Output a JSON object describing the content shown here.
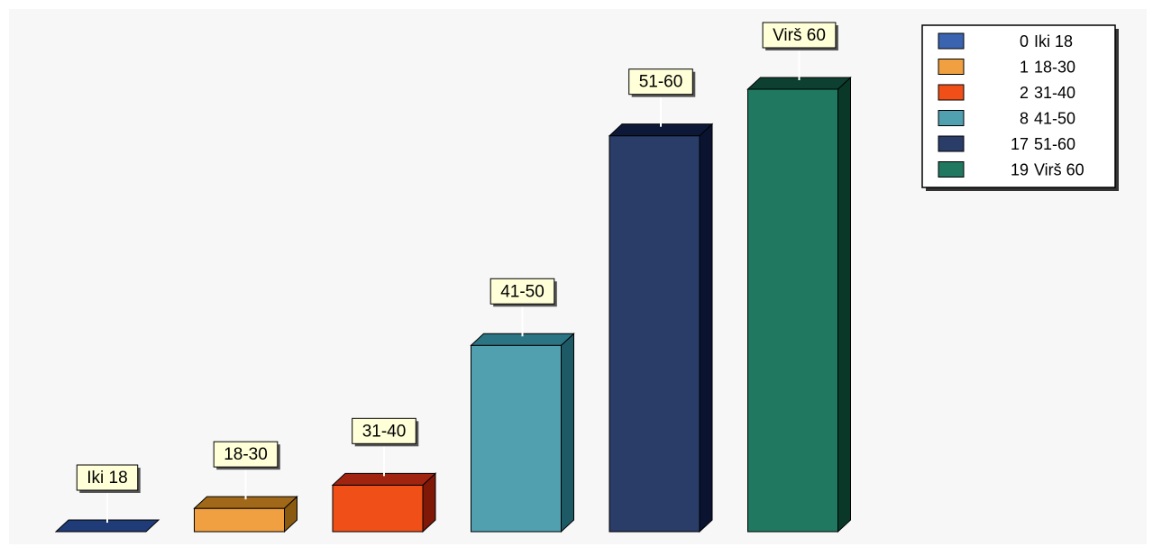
{
  "chart_data": {
    "type": "bar",
    "style": "3d-column",
    "categories": [
      "Iki 18",
      "18-30",
      "31-40",
      "41-50",
      "51-60",
      "Virš 60"
    ],
    "values": [
      0,
      1,
      2,
      8,
      17,
      19
    ],
    "colors": [
      "#1f3c78",
      "#f0a040",
      "#f05018",
      "#50a0b0",
      "#2a3d68",
      "#207860"
    ],
    "side_colors": [
      "#0a1840",
      "#8a5a10",
      "#801808",
      "#1e5a66",
      "#0a1430",
      "#0a3828"
    ],
    "top_colors": [
      "#15306a",
      "#a06818",
      "#a02410",
      "#2a7484",
      "#0d1838",
      "#0d4030"
    ],
    "legend": {
      "position": "top-right",
      "entries": [
        {
          "value": "0",
          "label": "Iki 18",
          "color": "#3a64b0"
        },
        {
          "value": "1",
          "label": "18-30",
          "color": "#f0a040"
        },
        {
          "value": "2",
          "label": "31-40",
          "color": "#f05018"
        },
        {
          "value": "8",
          "label": "41-50",
          "color": "#50a0b0"
        },
        {
          "value": "17",
          "label": "51-60",
          "color": "#2a3d68"
        },
        {
          "value": "19",
          "label": "Virš 60",
          "color": "#207860"
        }
      ]
    },
    "ylim": [
      0,
      19
    ],
    "grid": false,
    "background": "#f7f7f7",
    "label_box_color": "#ffffd8"
  }
}
